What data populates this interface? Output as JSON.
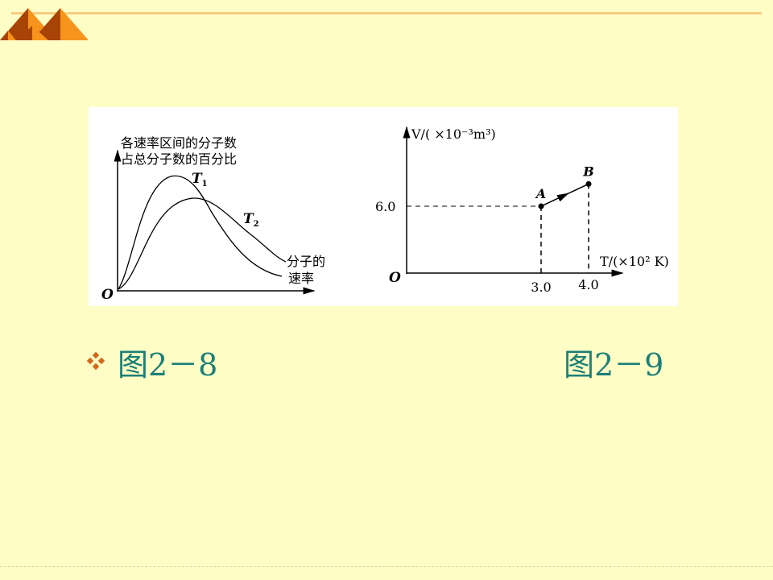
{
  "slide": {
    "colors": {
      "background": "#FFFDC6",
      "accent_line": "#F6CD7E",
      "caption": "#1B7F77",
      "bullet": "#D2691E",
      "decor_dark": "#A84306",
      "decor_light": "#F7941D"
    },
    "bullet_icon": "diamond-bullet-icon",
    "captions": [
      "图2－8",
      "图2－9"
    ]
  },
  "figure_2_8": {
    "y_label_line1": "各速率区间的分子数",
    "y_label_line2": "占总分子数的百分比",
    "x_label_line1": "分子的",
    "x_label_line2": "速率",
    "origin": "O",
    "curve_labels": [
      {
        "main": "T",
        "sub": "1"
      },
      {
        "main": "T",
        "sub": "2"
      }
    ]
  },
  "chart_data": {
    "type": "line",
    "ylabel": "V/( ×10⁻³m³)",
    "xlabel": "T/(×10² K)",
    "origin": "O",
    "x_ticks": [
      "3.0",
      "4.0"
    ],
    "y_ticks": [
      "6.0"
    ],
    "points": [
      {
        "label": "A",
        "x": 3.0,
        "y": 6.0
      },
      {
        "label": "B",
        "x": 4.0,
        "y": 8.0
      }
    ],
    "arrow": "A-to-B",
    "dashed_guides": true
  }
}
